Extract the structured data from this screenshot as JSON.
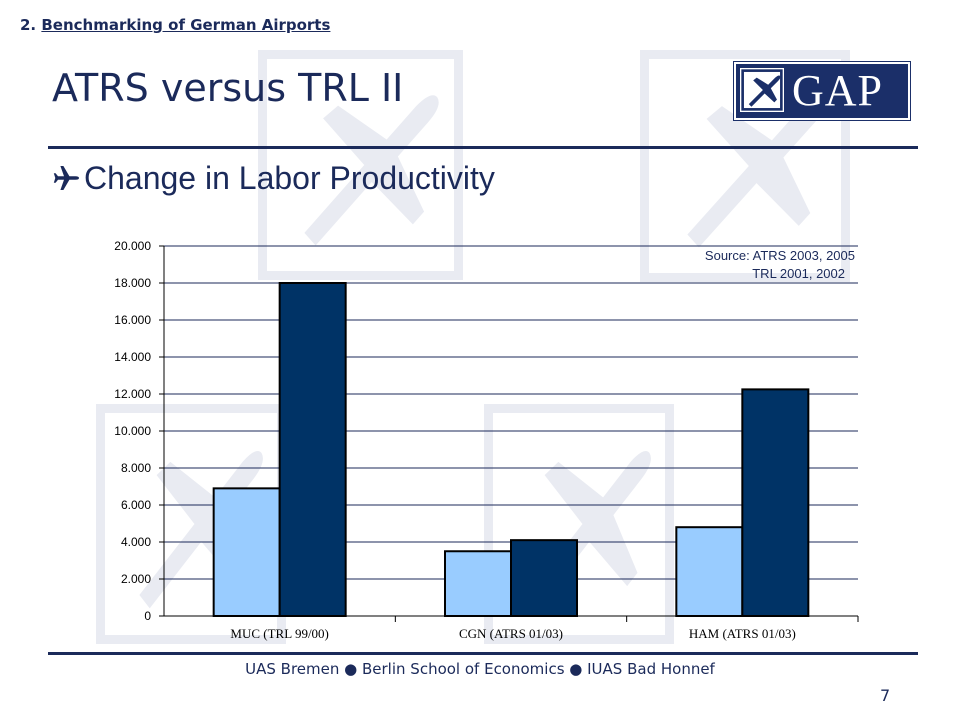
{
  "header": {
    "section_number": "2.",
    "section_title": "Benchmarking of German Airports",
    "title": "ATRS versus TRL II",
    "subtitle": "Change in Labor Productivity"
  },
  "logo": {
    "text": "GAP",
    "icon": "airplane-icon"
  },
  "colors": {
    "navy": "#1b2a5a",
    "series_light": "#99ccff",
    "series_dark": "#003366"
  },
  "chart_data": {
    "type": "bar",
    "categories": [
      "MUC (TRL 99/00)",
      "CGN (ATRS 01/03)",
      "HAM (ATRS 01/03)"
    ],
    "series": [
      {
        "values": [
          6900,
          3500,
          4800
        ],
        "color": "#99ccff"
      },
      {
        "values": [
          18000,
          4100,
          12250
        ],
        "color": "#003366"
      }
    ],
    "ylim": [
      0,
      20000
    ],
    "yticks": [
      "0",
      "2.000",
      "4.000",
      "6.000",
      "8.000",
      "10.000",
      "12.000",
      "14.000",
      "16.000",
      "18.000",
      "20.000"
    ],
    "grid": true,
    "source_lines": [
      "Source: ATRS 2003, 2005",
      "TRL  2001, 2002"
    ]
  },
  "footer": {
    "text": "UAS Bremen ● Berlin School of Economics ● IUAS Bad Honnef",
    "page_number": "7"
  }
}
